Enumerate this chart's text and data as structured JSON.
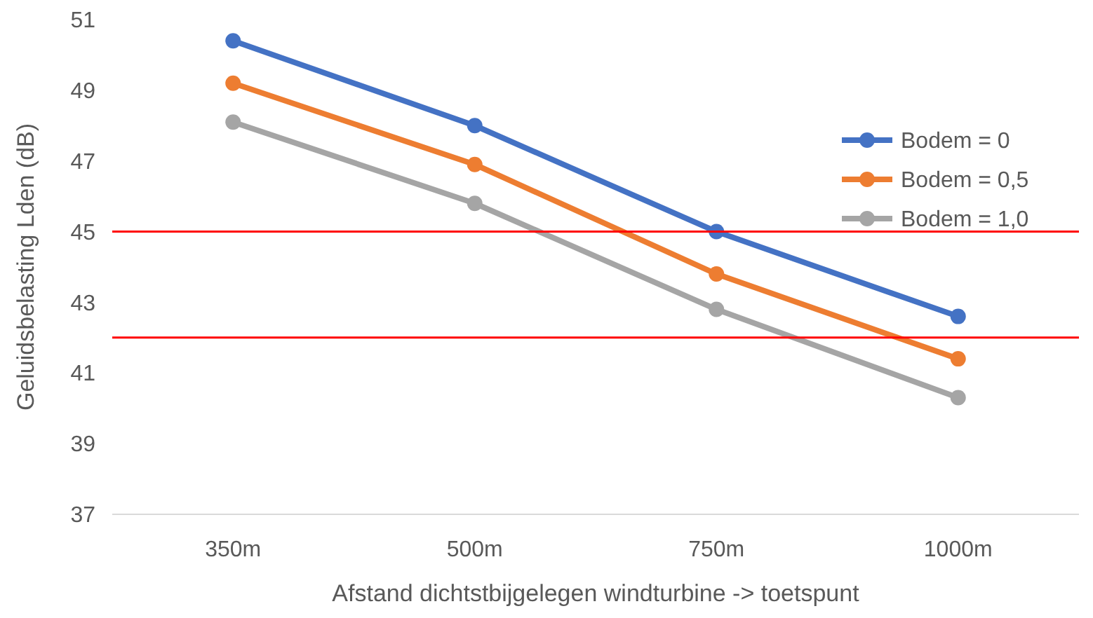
{
  "chart_data": {
    "type": "line",
    "xlabel": "Afstand dichtstbijgelegen windturbine -> toetspunt",
    "ylabel": "Geluidsbelasting Lden (dB)",
    "categories": [
      "350m",
      "500m",
      "750m",
      "1000m"
    ],
    "series": [
      {
        "name": "Bodem = 0",
        "color": "#4472c4",
        "values": [
          50.4,
          48.0,
          45.0,
          42.6
        ]
      },
      {
        "name": "Bodem = 0,5",
        "color": "#ed7d31",
        "values": [
          49.2,
          46.9,
          43.8,
          41.4
        ]
      },
      {
        "name": "Bodem = 1,0",
        "color": "#a5a5a5",
        "values": [
          48.1,
          45.8,
          42.8,
          40.3
        ]
      }
    ],
    "ylim": [
      37,
      51
    ],
    "yticks": [
      37,
      39,
      41,
      43,
      45,
      47,
      49,
      51
    ],
    "grid": false,
    "legend": "right",
    "marker": "circle",
    "line_style": "solid",
    "ref_lines": [
      {
        "axis": "y",
        "value": 45,
        "color": "#ff0000"
      },
      {
        "axis": "y",
        "value": 42,
        "color": "#ff0000"
      }
    ]
  }
}
